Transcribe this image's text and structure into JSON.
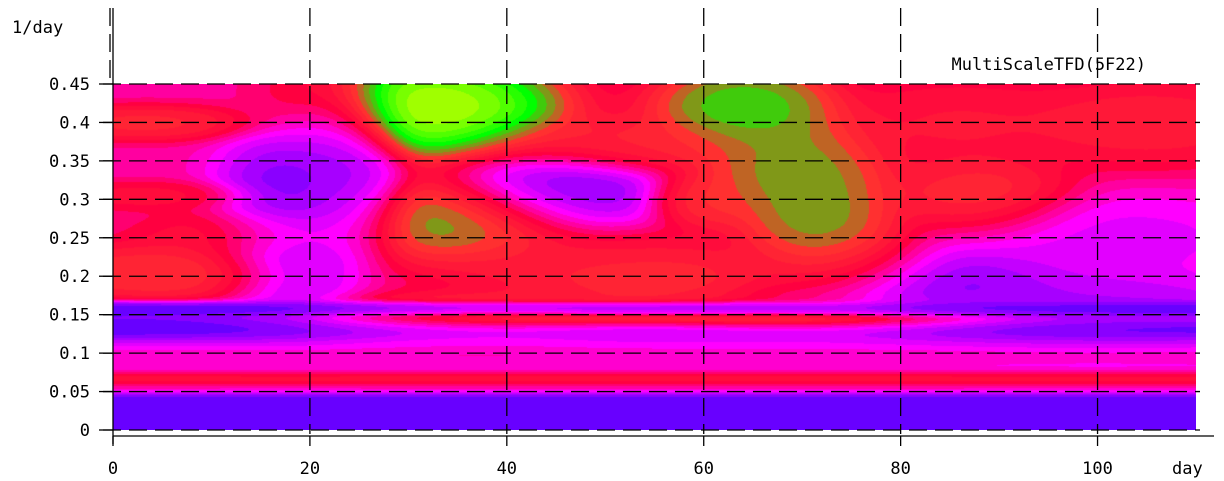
{
  "chart_data": {
    "type": "heatmap",
    "title": "MultiScaleTFD(5F22)",
    "xlabel": "day",
    "ylabel": "1/day",
    "xlim": [
      0,
      110
    ],
    "ylim": [
      0,
      0.45
    ],
    "x_ticks": [
      0,
      20,
      40,
      60,
      80,
      100
    ],
    "x_tick_labels": [
      "0",
      "20",
      "40",
      "60",
      "80",
      "100"
    ],
    "y_ticks": [
      0,
      0.05,
      0.1,
      0.15,
      0.2,
      0.25,
      0.3,
      0.35,
      0.4,
      0.45
    ],
    "y_tick_labels": [
      "0",
      "0.05",
      "0.1",
      "0.15",
      "0.2",
      "0.25",
      "0.3",
      "0.35",
      "0.4",
      "0.45"
    ],
    "grid": true,
    "colormap": [
      "#0000ff",
      "#8a00ff",
      "#ff00ff",
      "#ff0040",
      "#ff3030",
      "#00ff00",
      "#a0ff00",
      "#ffff00"
    ],
    "background_level": 2.5,
    "horizontal_bands": [
      {
        "y": 0.01,
        "width": 0.012,
        "level": 0.4
      },
      {
        "y": 0.028,
        "width": 0.008,
        "level": 0.6
      },
      {
        "y": 0.042,
        "width": 0.005,
        "level": 0.2
      },
      {
        "y": 0.055,
        "width": 0.008,
        "level": 2.2
      },
      {
        "y": 0.068,
        "width": 0.007,
        "level": 4.0
      },
      {
        "y": 0.082,
        "width": 0.009,
        "level": 1.8
      },
      {
        "y": 0.097,
        "width": 0.009,
        "level": 2.6
      },
      {
        "y": 0.112,
        "width": 0.009,
        "level": 1.6
      },
      {
        "y": 0.128,
        "width": 0.008,
        "level": 0.4
      },
      {
        "y": 0.158,
        "width": 0.005,
        "level": 0.3
      }
    ],
    "blobs": [
      {
        "x": 5,
        "y": 0.205,
        "sx": 8,
        "sy": 0.02,
        "level": 4.2
      },
      {
        "x": 3,
        "y": 0.305,
        "sx": 6,
        "sy": 0.01,
        "level": 3.4
      },
      {
        "x": 3,
        "y": 0.4,
        "sx": 6,
        "sy": 0.012,
        "level": 4.0
      },
      {
        "x": 14,
        "y": 0.255,
        "sx": 6,
        "sy": 0.02,
        "level": 3.6
      },
      {
        "x": 10,
        "y": 0.14,
        "sx": 18,
        "sy": 0.012,
        "level": 0.4
      },
      {
        "x": 32,
        "y": 0.42,
        "sx": 7,
        "sy": 0.035,
        "level": 7.0
      },
      {
        "x": 35,
        "y": 0.275,
        "sx": 7,
        "sy": 0.03,
        "level": 5.2
      },
      {
        "x": 23,
        "y": 0.37,
        "sx": 3,
        "sy": 0.05,
        "level": 1.0
      },
      {
        "x": 24,
        "y": 0.3,
        "sx": 3,
        "sy": 0.04,
        "level": 1.2
      },
      {
        "x": 37,
        "y": 0.14,
        "sx": 12,
        "sy": 0.018,
        "level": 5.0
      },
      {
        "x": 52,
        "y": 0.215,
        "sx": 10,
        "sy": 0.025,
        "level": 3.6
      },
      {
        "x": 52,
        "y": 0.37,
        "sx": 8,
        "sy": 0.02,
        "level": 4.0
      },
      {
        "x": 56,
        "y": 0.2,
        "sx": 8,
        "sy": 0.018,
        "level": 4.2
      },
      {
        "x": 60,
        "y": 0.3,
        "sx": 3,
        "sy": 0.02,
        "level": 4.2
      },
      {
        "x": 64,
        "y": 0.42,
        "sx": 5,
        "sy": 0.03,
        "level": 5.4
      },
      {
        "x": 69,
        "y": 0.34,
        "sx": 5,
        "sy": 0.04,
        "level": 5.0
      },
      {
        "x": 72,
        "y": 0.26,
        "sx": 4,
        "sy": 0.04,
        "level": 5.0
      },
      {
        "x": 75,
        "y": 0.22,
        "sx": 5,
        "sy": 0.03,
        "level": 4.8
      },
      {
        "x": 70,
        "y": 0.14,
        "sx": 12,
        "sy": 0.015,
        "level": 4.8
      },
      {
        "x": 88,
        "y": 0.3,
        "sx": 5,
        "sy": 0.03,
        "level": 4.2
      },
      {
        "x": 85,
        "y": 0.4,
        "sx": 6,
        "sy": 0.03,
        "level": 3.6
      },
      {
        "x": 105,
        "y": 0.4,
        "sx": 8,
        "sy": 0.03,
        "level": 3.8
      },
      {
        "x": 100,
        "y": 0.25,
        "sx": 10,
        "sy": 0.03,
        "level": 1.6
      },
      {
        "x": 100,
        "y": 0.15,
        "sx": 10,
        "sy": 0.03,
        "level": 1.0
      },
      {
        "x": 80,
        "y": 0.195,
        "sx": 8,
        "sy": 0.03,
        "level": 0.4
      },
      {
        "x": 45,
        "y": 0.31,
        "sx": 6,
        "sy": 0.03,
        "level": 0.4
      },
      {
        "x": 18,
        "y": 0.27,
        "sx": 4,
        "sy": 0.07,
        "level": 0.4
      }
    ]
  }
}
